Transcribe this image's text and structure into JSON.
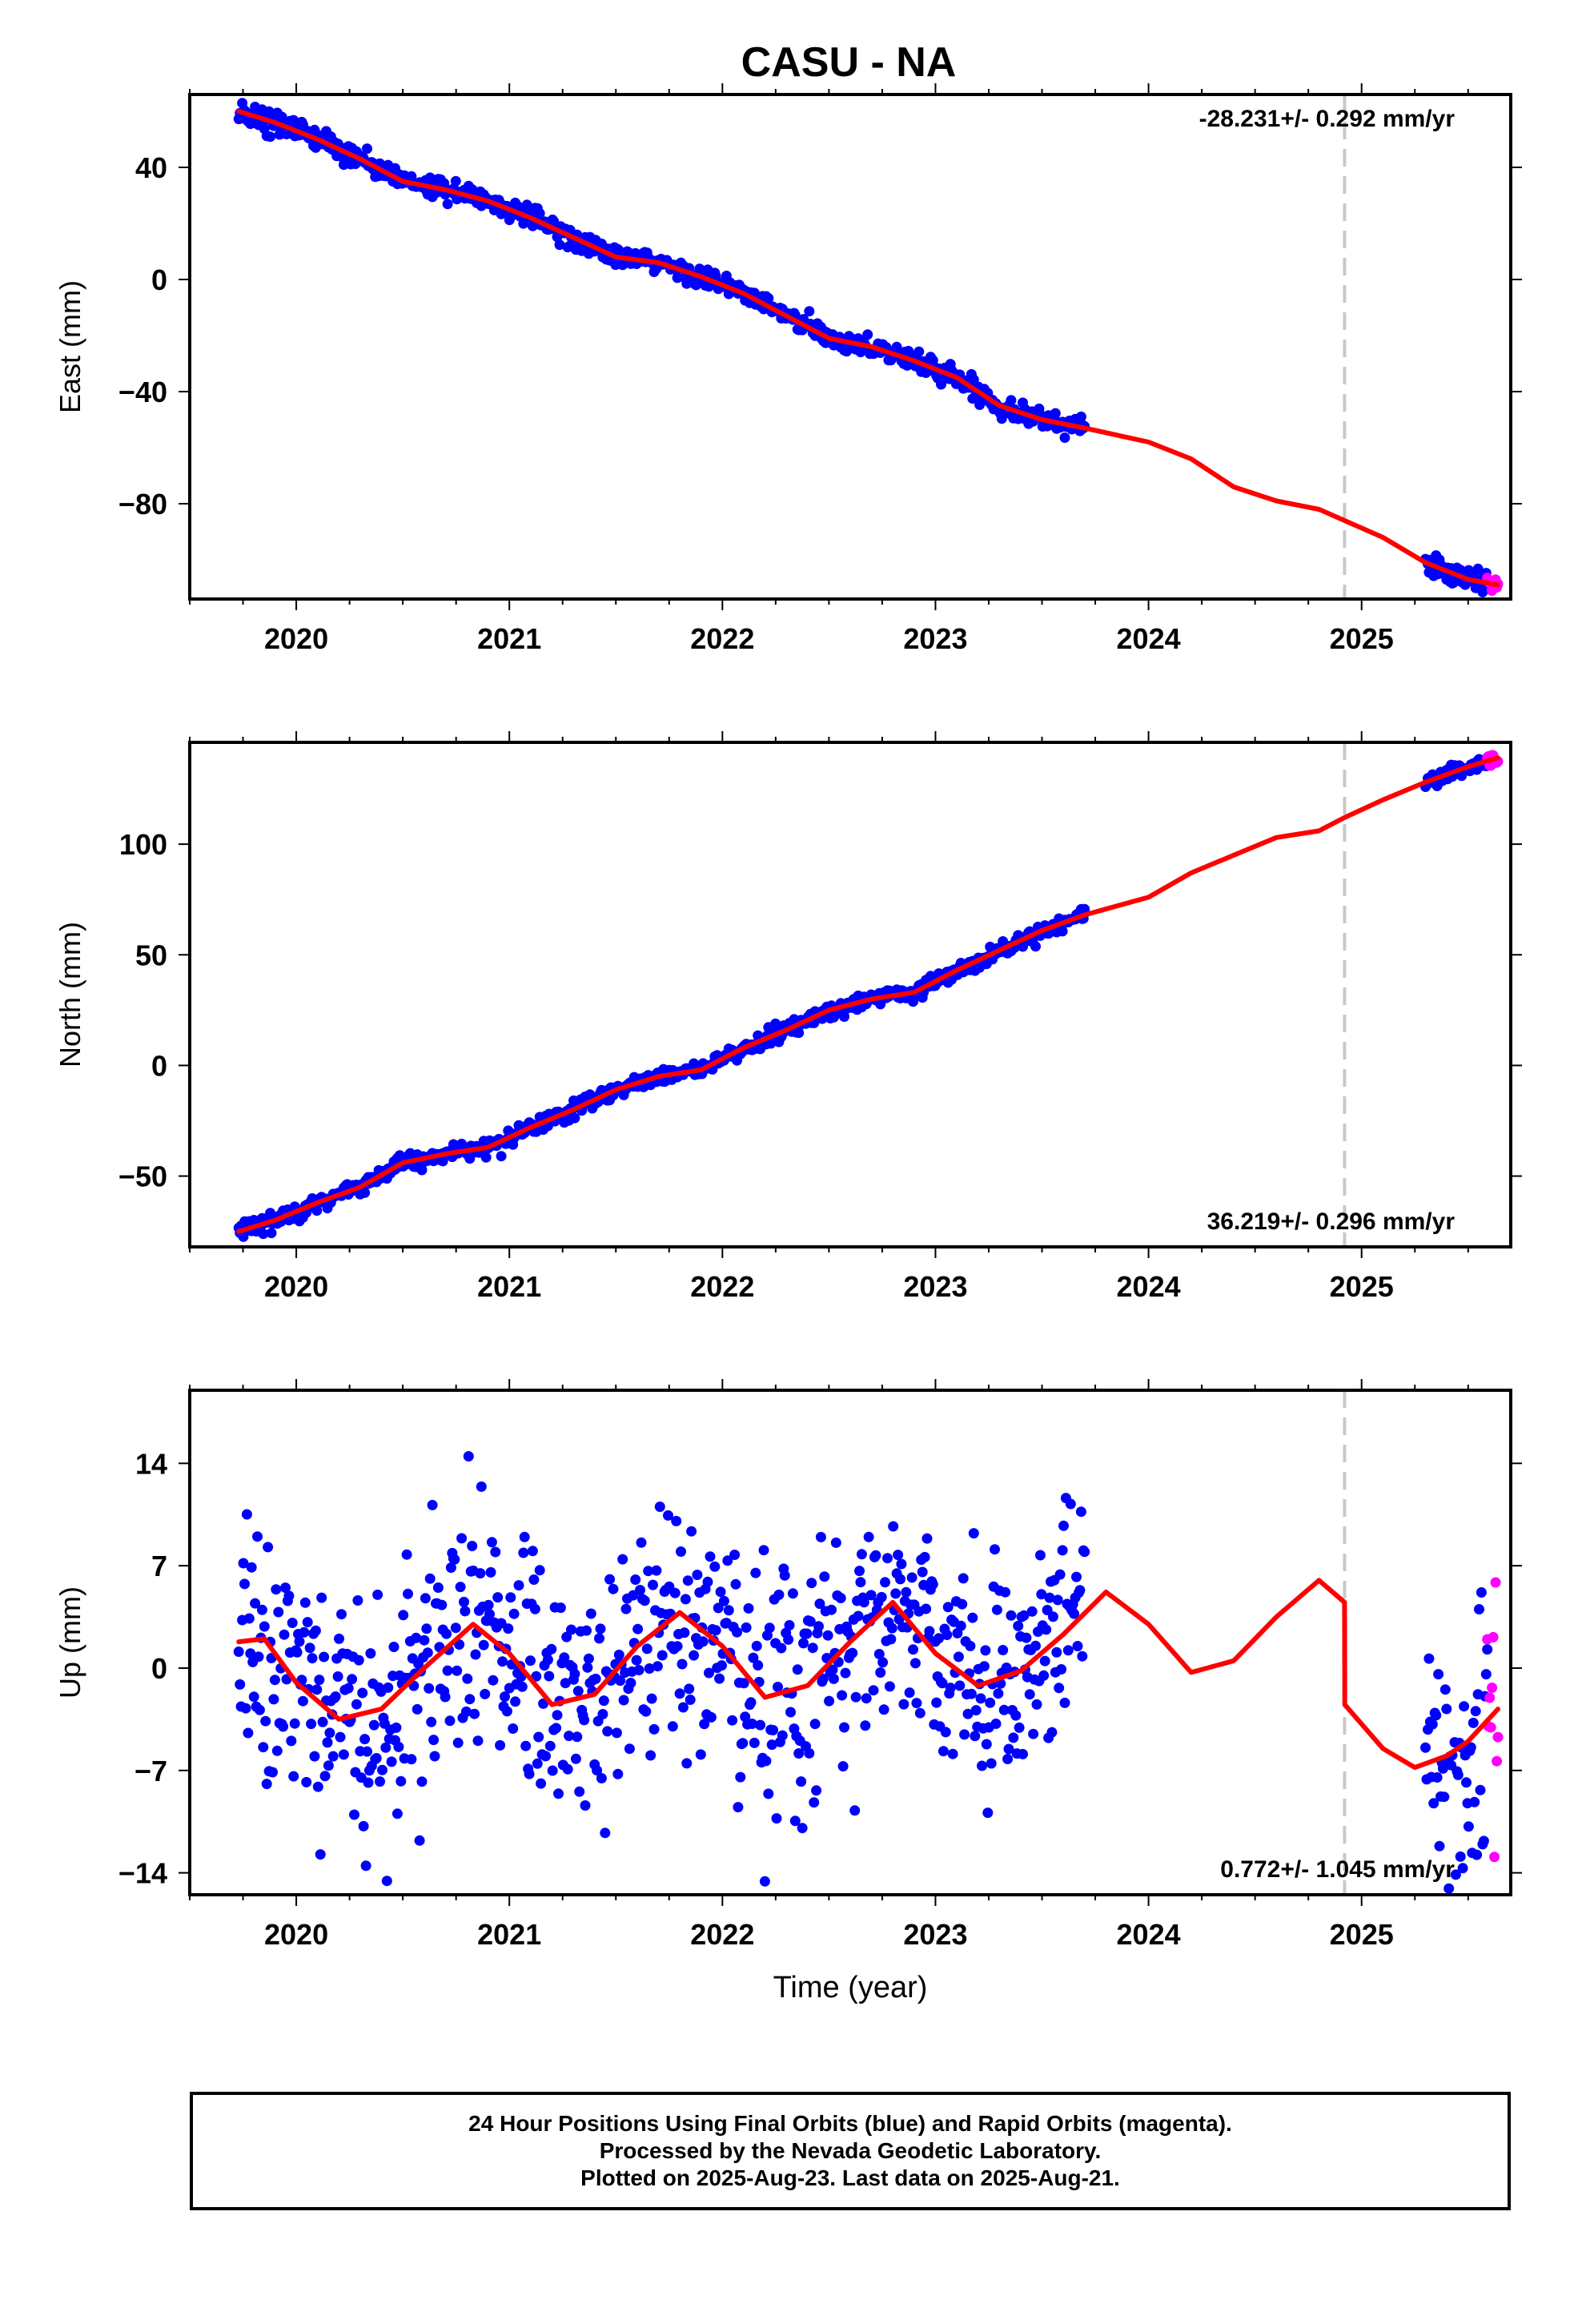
{
  "page": {
    "title": "CASU - NA"
  },
  "chart_data": [
    {
      "type": "scatter",
      "ylabel": "East (mm)",
      "xlim": [
        2019.5,
        2025.7
      ],
      "ylim": [
        -114,
        66
      ],
      "x_ticks": [
        2020,
        2021,
        2022,
        2023,
        2024,
        2025
      ],
      "y_ticks": [
        -80,
        -40,
        0,
        40
      ],
      "y_tick_labels": [
        "−80",
        "−40",
        "0",
        "40"
      ],
      "dashed_line_x": 2024.92,
      "annotation": "-28.231+/- 0.292 mm/yr",
      "annotation_position": "top-right",
      "data_segments": [
        {
          "start": 2019.73,
          "end": 2023.7,
          "color": "#0000ff"
        },
        {
          "start": 2025.3,
          "end": 2025.59,
          "color": "#0000ff"
        },
        {
          "start": 2025.59,
          "end": 2025.64,
          "color": "#ff00ff"
        }
      ],
      "noise": 1.8,
      "series": [
        {
          "kind": "model",
          "color": "#ff0000",
          "x": [
            2019.73,
            2019.9,
            2020.1,
            2020.3,
            2020.5,
            2020.7,
            2020.9,
            2021.1,
            2021.3,
            2021.5,
            2021.7,
            2021.9,
            2022.1,
            2022.3,
            2022.5,
            2022.7,
            2022.9,
            2023.1,
            2023.3,
            2023.5,
            2023.7,
            2024.0,
            2024.2,
            2024.4,
            2024.6,
            2024.8,
            2024.92,
            2025.1,
            2025.3,
            2025.5,
            2025.64
          ],
          "y": [
            60,
            56,
            50,
            43,
            35,
            32,
            28,
            22,
            15,
            8,
            6,
            1,
            -5,
            -13,
            -21,
            -24,
            -29,
            -35,
            -45,
            -50,
            -53,
            -58,
            -64,
            -74,
            -79,
            -82,
            -86,
            -92,
            -101,
            -107,
            -109
          ]
        }
      ]
    },
    {
      "type": "scatter",
      "ylabel": "North (mm)",
      "xlim": [
        2019.5,
        2025.7
      ],
      "ylim": [
        -82,
        146
      ],
      "x_ticks": [
        2020,
        2021,
        2022,
        2023,
        2024,
        2025
      ],
      "y_ticks": [
        -50,
        0,
        50,
        100
      ],
      "y_tick_labels": [
        "−50",
        "0",
        "50",
        "100"
      ],
      "dashed_line_x": 2024.92,
      "annotation": "36.219+/- 0.296 mm/yr",
      "annotation_position": "bottom-right",
      "data_segments": [
        {
          "start": 2019.73,
          "end": 2023.7,
          "color": "#0000ff"
        },
        {
          "start": 2025.3,
          "end": 2025.59,
          "color": "#0000ff"
        },
        {
          "start": 2025.59,
          "end": 2025.64,
          "color": "#ff00ff"
        }
      ],
      "noise": 1.8,
      "series": [
        {
          "kind": "model",
          "color": "#ff0000",
          "x": [
            2019.73,
            2019.9,
            2020.1,
            2020.3,
            2020.5,
            2020.7,
            2020.9,
            2021.1,
            2021.3,
            2021.5,
            2021.7,
            2021.9,
            2022.1,
            2022.3,
            2022.5,
            2022.7,
            2022.9,
            2023.1,
            2023.3,
            2023.5,
            2023.7,
            2024.0,
            2024.2,
            2024.4,
            2024.6,
            2024.8,
            2024.92,
            2025.1,
            2025.3,
            2025.5,
            2025.64
          ],
          "y": [
            -75,
            -70,
            -62,
            -55,
            -44,
            -40,
            -37,
            -28,
            -20,
            -11,
            -5,
            -2,
            8,
            16,
            25,
            30,
            33,
            43,
            52,
            61,
            68,
            76,
            87,
            95,
            103,
            106,
            112,
            120,
            128,
            135,
            139
          ]
        }
      ]
    },
    {
      "type": "scatter",
      "ylabel": "Up (mm)",
      "xlabel": "Time (year)",
      "xlim": [
        2019.5,
        2025.7
      ],
      "ylim": [
        -15.5,
        19
      ],
      "x_ticks": [
        2020,
        2021,
        2022,
        2023,
        2024,
        2025
      ],
      "y_ticks": [
        -14,
        -7,
        0,
        7,
        14
      ],
      "y_tick_labels": [
        "−14",
        "−7",
        "0",
        "7",
        "14"
      ],
      "dashed_line_x": 2024.92,
      "annotation": "0.772+/- 1.045 mm/yr",
      "annotation_position": "bottom-right",
      "data_segments": [
        {
          "start": 2019.73,
          "end": 2023.7,
          "color": "#0000ff"
        },
        {
          "start": 2025.3,
          "end": 2025.59,
          "color": "#0000ff"
        },
        {
          "start": 2025.59,
          "end": 2025.64,
          "color": "#ff00ff"
        }
      ],
      "noise": 4.2,
      "series": [
        {
          "kind": "model",
          "color": "#ff0000",
          "x": [
            2019.73,
            2019.85,
            2020.0,
            2020.2,
            2020.4,
            2020.6,
            2020.83,
            2021.0,
            2021.2,
            2021.4,
            2021.6,
            2021.8,
            2022.0,
            2022.2,
            2022.4,
            2022.6,
            2022.8,
            2023.0,
            2023.2,
            2023.4,
            2023.6,
            2023.8,
            2024.0,
            2024.2,
            2024.4,
            2024.6,
            2024.8,
            2024.92,
            2024.921,
            2025.1,
            2025.25,
            2025.4,
            2025.5,
            2025.64
          ],
          "y": [
            1.8,
            2.0,
            -1.0,
            -3.5,
            -2.8,
            0.0,
            3.0,
            1.0,
            -2.5,
            -1.8,
            1.5,
            3.8,
            1.5,
            -2.0,
            -1.2,
            1.8,
            4.5,
            1.0,
            -1.2,
            -0.2,
            2.3,
            5.2,
            3.0,
            -0.3,
            0.5,
            3.5,
            6.0,
            4.5,
            -2.5,
            -5.5,
            -6.8,
            -6.0,
            -5.0,
            -2.8
          ]
        }
      ]
    }
  ],
  "footer": {
    "line1": "24 Hour Positions Using Final Orbits (blue) and Rapid Orbits (magenta).",
    "line2": "Processed by the Nevada Geodetic Laboratory.",
    "line3": "Plotted on 2025-Aug-23. Last data on 2025-Aug-21."
  }
}
